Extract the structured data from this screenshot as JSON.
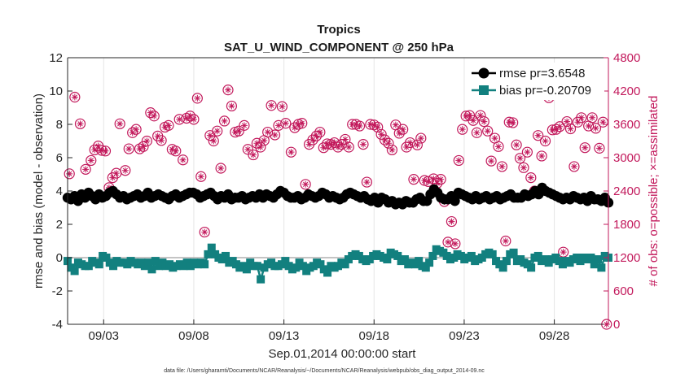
{
  "chart_data": {
    "type": "line",
    "title": "Tropics",
    "subtitle": "SAT_U_WIND_COMPONENT @ 250 hPa",
    "xlabel": "Sep.01,2014 00:00:00 start",
    "ylabel": "rmse and bias (model - observation)",
    "y2label": "# of obs: o=possible; ×=assimilated",
    "ylim": [
      -4,
      12
    ],
    "y2lim": [
      0,
      4800
    ],
    "xlim": [
      1.0,
      31.0
    ],
    "yticks": [
      "-4",
      "-2",
      "0",
      "2",
      "4",
      "6",
      "8",
      "10",
      "12"
    ],
    "y2ticks": [
      "0",
      "600",
      "1200",
      "1800",
      "2400",
      "3000",
      "3600",
      "4200",
      "4800"
    ],
    "xticks": [
      {
        "label": "09/03",
        "day": 3
      },
      {
        "label": "09/08",
        "day": 8
      },
      {
        "label": "09/13",
        "day": 13
      },
      {
        "label": "09/18",
        "day": 18
      },
      {
        "label": "09/23",
        "day": 23
      },
      {
        "label": "09/28",
        "day": 28
      }
    ],
    "legend": {
      "placement": "top-right",
      "entries": [
        "rmse pr=3.6548",
        "bias pr=-0.20709"
      ]
    },
    "colors": {
      "rmse": "#000000",
      "bias": "#12807f",
      "obs": "#c2185b",
      "zero": "#b0b0b0"
    },
    "series": [
      {
        "name": "rmse pr=3.6548",
        "values": [
          3.6,
          3.5,
          3.7,
          3.4,
          3.8,
          3.6,
          3.9,
          3.7,
          3.5,
          3.8,
          3.6,
          3.7,
          3.9,
          4.0,
          3.8,
          3.6,
          3.7,
          3.5,
          3.6,
          3.7,
          3.8,
          3.6,
          3.7,
          3.9,
          3.6,
          3.7,
          3.8,
          3.7,
          3.6,
          3.5,
          3.7,
          3.8,
          3.6,
          3.7,
          3.8,
          3.9,
          3.9,
          3.8,
          3.6,
          3.7,
          3.8,
          3.9,
          3.7,
          3.5,
          3.7,
          3.6,
          3.8,
          3.5,
          3.6,
          3.6,
          3.7,
          3.5,
          3.6,
          3.7,
          3.6,
          3.8,
          3.6,
          3.8,
          3.7,
          3.6,
          3.8,
          4.0,
          3.9,
          3.7,
          3.6,
          3.6,
          3.7,
          3.5,
          3.6,
          3.8,
          3.7,
          3.6,
          3.7,
          3.9,
          3.8,
          3.6,
          3.7,
          3.6,
          3.5,
          3.6,
          3.8,
          3.9,
          3.8,
          3.7,
          3.6,
          3.7,
          3.5,
          3.4,
          3.6,
          3.3,
          3.6,
          3.5,
          3.3,
          3.4,
          3.2,
          3.3,
          3.2,
          3.4,
          3.3,
          3.3,
          3.5,
          3.6,
          3.4,
          3.4,
          3.8,
          4.1,
          3.9,
          3.6,
          3.5,
          3.5,
          3.7,
          3.4,
          3.9,
          3.8,
          3.7,
          3.6,
          3.5,
          3.7,
          3.5,
          3.6,
          3.7,
          3.5,
          3.6,
          3.7,
          3.5,
          3.6,
          3.7,
          3.8,
          3.6,
          3.6,
          3.6,
          3.8,
          3.7,
          3.8,
          4.0,
          3.8,
          4.2,
          4.0,
          3.9,
          3.8,
          3.7,
          3.6,
          3.5,
          3.6,
          3.5,
          3.7,
          3.6,
          3.5,
          3.6,
          3.4,
          3.7,
          3.5,
          3.5,
          3.4,
          3.6,
          3.3
        ]
      },
      {
        "name": "bias pr=-0.20709",
        "values": [
          -0.2,
          -0.6,
          -0.8,
          -0.3,
          -0.4,
          -0.5,
          -0.5,
          -0.2,
          -0.3,
          -0.4,
          0.1,
          0.0,
          -0.3,
          -0.5,
          -0.2,
          -0.3,
          -0.3,
          -0.4,
          -0.2,
          -0.3,
          -0.4,
          -0.3,
          -0.5,
          -0.3,
          -0.7,
          -0.2,
          -0.5,
          -0.3,
          -0.5,
          -0.4,
          -0.6,
          -0.5,
          -0.4,
          -0.5,
          -0.3,
          -0.5,
          -0.3,
          -0.4,
          -0.3,
          -0.4,
          0.2,
          0.6,
          0.2,
          0.0,
          -0.1,
          0.1,
          -0.3,
          -0.2,
          -0.4,
          -0.6,
          -0.5,
          -0.7,
          -0.3,
          -0.5,
          -0.5,
          -1.3,
          -0.6,
          -0.4,
          -0.3,
          -0.5,
          -0.5,
          -0.4,
          -0.2,
          -0.5,
          -0.7,
          -0.6,
          -0.3,
          -0.5,
          -0.8,
          -0.6,
          -0.5,
          -0.3,
          -0.4,
          -0.7,
          -0.9,
          -0.5,
          -0.6,
          -0.5,
          -0.3,
          -0.4,
          -0.1,
          0.1,
          0.2,
          0.1,
          -0.1,
          -0.2,
          -0.1,
          0.1,
          0.2,
          0.1,
          0.0,
          -0.1,
          0.3,
          0.2,
          0.1,
          -0.2,
          -0.1,
          -0.4,
          -0.3,
          -0.4,
          -0.2,
          -0.5,
          -0.6,
          -0.3,
          0.1,
          0.5,
          0.4,
          0.3,
          0.1,
          -0.1,
          0.0,
          0.2,
          0.1,
          -0.1,
          0.0,
          0.1,
          -0.2,
          -0.1,
          0.0,
          0.2,
          0.3,
          0.2,
          -0.2,
          -0.4,
          -0.6,
          -0.2,
          0.2,
          0.3,
          -0.2,
          -0.1,
          -0.3,
          -0.4,
          -0.6,
          0.0,
          0.1,
          -0.2,
          -0.1,
          -0.3,
          -0.1,
          0.0,
          -0.2,
          -0.4,
          -0.2,
          -0.3,
          -0.1,
          0.0,
          -0.2,
          0.0,
          -0.1,
          0.0,
          -0.4,
          -0.1,
          -0.6,
          0.1,
          0.0
        ]
      },
      {
        "name": "# of obs possible / assimilated",
        "axis": "right",
        "points": [
          [
            1.1,
            2710
          ],
          [
            1.4,
            4090
          ],
          [
            1.7,
            3610
          ],
          [
            2.0,
            2790
          ],
          [
            2.3,
            2950
          ],
          [
            2.5,
            3140
          ],
          [
            2.7,
            3210
          ],
          [
            2.9,
            3130
          ],
          [
            3.1,
            3120
          ],
          [
            3.3,
            2460
          ],
          [
            3.5,
            2640
          ],
          [
            3.7,
            2720
          ],
          [
            3.9,
            3610
          ],
          [
            4.2,
            2770
          ],
          [
            4.4,
            3160
          ],
          [
            4.6,
            3450
          ],
          [
            4.8,
            3510
          ],
          [
            5.0,
            3160
          ],
          [
            5.2,
            3200
          ],
          [
            5.4,
            3300
          ],
          [
            5.6,
            3810
          ],
          [
            5.8,
            3750
          ],
          [
            6.0,
            3390
          ],
          [
            6.2,
            3310
          ],
          [
            6.4,
            3550
          ],
          [
            6.6,
            3580
          ],
          [
            6.8,
            3150
          ],
          [
            7.0,
            3120
          ],
          [
            7.2,
            3690
          ],
          [
            7.4,
            2960
          ],
          [
            7.6,
            3710
          ],
          [
            7.8,
            3750
          ],
          [
            8.0,
            3690
          ],
          [
            8.2,
            4070
          ],
          [
            8.4,
            2660
          ],
          [
            8.6,
            1660
          ],
          [
            8.9,
            3400
          ],
          [
            9.1,
            3300
          ],
          [
            9.3,
            3480
          ],
          [
            9.5,
            2810
          ],
          [
            9.7,
            3660
          ],
          [
            9.9,
            4220
          ],
          [
            10.1,
            3930
          ],
          [
            10.3,
            3460
          ],
          [
            10.5,
            3480
          ],
          [
            10.8,
            3580
          ],
          [
            11.0,
            3150
          ],
          [
            11.3,
            3050
          ],
          [
            11.5,
            3260
          ],
          [
            11.7,
            3190
          ],
          [
            11.9,
            3310
          ],
          [
            12.1,
            3460
          ],
          [
            12.3,
            3940
          ],
          [
            12.5,
            3410
          ],
          [
            12.7,
            3580
          ],
          [
            12.9,
            3920
          ],
          [
            13.1,
            3620
          ],
          [
            13.4,
            3100
          ],
          [
            13.6,
            3540
          ],
          [
            13.8,
            3600
          ],
          [
            14.0,
            3620
          ],
          [
            14.2,
            2520
          ],
          [
            14.4,
            3240
          ],
          [
            14.6,
            3320
          ],
          [
            14.8,
            3390
          ],
          [
            15.0,
            3460
          ],
          [
            15.2,
            3180
          ],
          [
            15.4,
            3250
          ],
          [
            15.6,
            3240
          ],
          [
            15.8,
            3270
          ],
          [
            16.0,
            3190
          ],
          [
            16.2,
            3240
          ],
          [
            16.4,
            3330
          ],
          [
            16.6,
            3190
          ],
          [
            16.8,
            3600
          ],
          [
            17.0,
            3600
          ],
          [
            17.2,
            3570
          ],
          [
            17.4,
            3240
          ],
          [
            17.6,
            2560
          ],
          [
            17.8,
            3600
          ],
          [
            18.0,
            3590
          ],
          [
            18.2,
            3550
          ],
          [
            18.4,
            3420
          ],
          [
            18.6,
            3320
          ],
          [
            18.8,
            3260
          ],
          [
            19.0,
            3140
          ],
          [
            19.2,
            3590
          ],
          [
            19.4,
            3440
          ],
          [
            19.6,
            3510
          ],
          [
            19.8,
            3190
          ],
          [
            20.0,
            3270
          ],
          [
            20.2,
            2610
          ],
          [
            20.4,
            3230
          ],
          [
            20.6,
            3350
          ],
          [
            20.8,
            2590
          ],
          [
            21.0,
            2570
          ],
          [
            21.3,
            2620
          ],
          [
            21.5,
            2540
          ],
          [
            21.7,
            2610
          ],
          [
            21.9,
            2210
          ],
          [
            22.1,
            1480
          ],
          [
            22.3,
            1850
          ],
          [
            22.5,
            1450
          ],
          [
            22.7,
            2950
          ],
          [
            22.9,
            3510
          ],
          [
            23.1,
            3750
          ],
          [
            23.3,
            3760
          ],
          [
            23.5,
            3670
          ],
          [
            23.7,
            3450
          ],
          [
            23.9,
            3760
          ],
          [
            24.1,
            3650
          ],
          [
            24.3,
            3480
          ],
          [
            24.5,
            2940
          ],
          [
            24.7,
            3350
          ],
          [
            24.9,
            3200
          ],
          [
            25.1,
            2840
          ],
          [
            25.3,
            1500
          ],
          [
            25.5,
            3640
          ],
          [
            25.7,
            3630
          ],
          [
            25.9,
            3230
          ],
          [
            26.1,
            2990
          ],
          [
            26.3,
            2820
          ],
          [
            26.5,
            3100
          ],
          [
            26.7,
            2640
          ],
          [
            26.9,
            2400
          ],
          [
            27.1,
            3400
          ],
          [
            27.3,
            3030
          ],
          [
            27.5,
            3300
          ],
          [
            27.7,
            4080
          ],
          [
            27.9,
            3500
          ],
          [
            28.1,
            3510
          ],
          [
            28.3,
            3560
          ],
          [
            28.5,
            1300
          ],
          [
            28.7,
            3650
          ],
          [
            28.9,
            3520
          ],
          [
            29.1,
            2840
          ],
          [
            29.3,
            3640
          ],
          [
            29.5,
            3720
          ],
          [
            29.7,
            3180
          ],
          [
            29.9,
            3570
          ],
          [
            30.1,
            3720
          ],
          [
            30.3,
            3530
          ],
          [
            30.5,
            3170
          ],
          [
            30.7,
            3640
          ],
          [
            30.9,
            0
          ]
        ]
      }
    ]
  },
  "footnote": "data file: /Users/gharamti/Documents/NCAR/Reanalysis/~/Documents/NCAR/Reanalysis/webpub/obs_diag_output_2014-09.nc"
}
